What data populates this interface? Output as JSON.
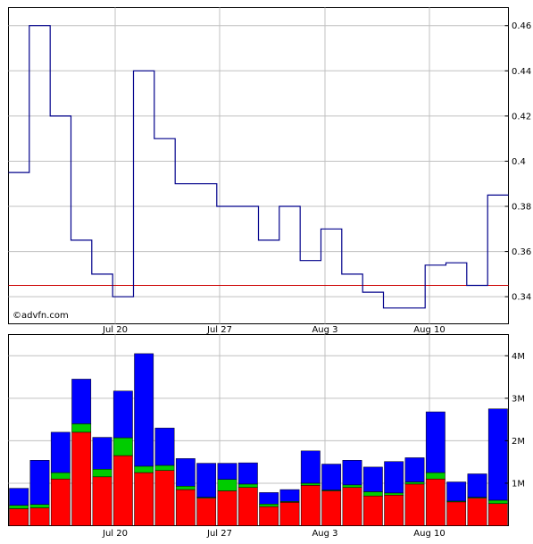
{
  "watermark": "©advfn.com",
  "chart_data": [
    {
      "type": "line",
      "style": "step",
      "x_tick_labels": [
        "Jul 20",
        "Jul 27",
        "Aug 3",
        "Aug 10"
      ],
      "y_tick_labels": [
        "0.34",
        "0.36",
        "0.38",
        "0.4",
        "0.42",
        "0.44",
        "0.46"
      ],
      "ylim": [
        0.328,
        0.468
      ],
      "grid": true,
      "series": [
        {
          "color": "#00008b",
          "values": [
            0.395,
            0.46,
            0.42,
            0.365,
            0.35,
            0.34,
            0.44,
            0.41,
            0.39,
            0.39,
            0.38,
            0.38,
            0.365,
            0.38,
            0.356,
            0.37,
            0.35,
            0.342,
            0.335,
            0.335,
            0.354,
            0.355,
            0.345,
            0.385
          ]
        }
      ],
      "reference_line": {
        "value": 0.345,
        "color": "#cc0000"
      }
    },
    {
      "type": "bar",
      "stacked": true,
      "x_tick_labels": [
        "Jul 20",
        "Jul 27",
        "Aug 3",
        "Aug 10"
      ],
      "y_tick_labels": [
        "1M",
        "2M",
        "3M",
        "4M"
      ],
      "ylim": [
        0,
        4.5
      ],
      "grid": true,
      "colors": {
        "red": "#ff0000",
        "green": "#00cc00",
        "blue": "#0000ff"
      },
      "values": [
        {
          "red": 0.4,
          "green": 0.08,
          "blue": 0.4
        },
        {
          "red": 0.42,
          "green": 0.08,
          "blue": 1.04
        },
        {
          "red": 1.1,
          "green": 0.15,
          "blue": 0.95
        },
        {
          "red": 2.2,
          "green": 0.2,
          "blue": 1.05
        },
        {
          "red": 1.15,
          "green": 0.18,
          "blue": 0.75
        },
        {
          "red": 1.65,
          "green": 0.42,
          "blue": 1.1
        },
        {
          "red": 1.25,
          "green": 0.15,
          "blue": 2.65
        },
        {
          "red": 1.3,
          "green": 0.12,
          "blue": 0.88
        },
        {
          "red": 0.85,
          "green": 0.08,
          "blue": 0.65
        },
        {
          "red": 0.65,
          "green": 0.02,
          "blue": 0.8
        },
        {
          "red": 0.82,
          "green": 0.27,
          "blue": 0.38
        },
        {
          "red": 0.9,
          "green": 0.08,
          "blue": 0.5
        },
        {
          "red": 0.45,
          "green": 0.06,
          "blue": 0.27
        },
        {
          "red": 0.55,
          "green": 0.02,
          "blue": 0.28
        },
        {
          "red": 0.95,
          "green": 0.05,
          "blue": 0.76
        },
        {
          "red": 0.82,
          "green": 0.02,
          "blue": 0.61
        },
        {
          "red": 0.9,
          "green": 0.06,
          "blue": 0.58
        },
        {
          "red": 0.7,
          "green": 0.1,
          "blue": 0.58
        },
        {
          "red": 0.72,
          "green": 0.05,
          "blue": 0.74
        },
        {
          "red": 0.98,
          "green": 0.05,
          "blue": 0.57
        },
        {
          "red": 1.1,
          "green": 0.15,
          "blue": 1.43
        },
        {
          "red": 0.56,
          "green": 0.02,
          "blue": 0.45
        },
        {
          "red": 0.65,
          "green": 0.02,
          "blue": 0.55
        },
        {
          "red": 0.52,
          "green": 0.08,
          "blue": 2.15
        }
      ]
    }
  ]
}
